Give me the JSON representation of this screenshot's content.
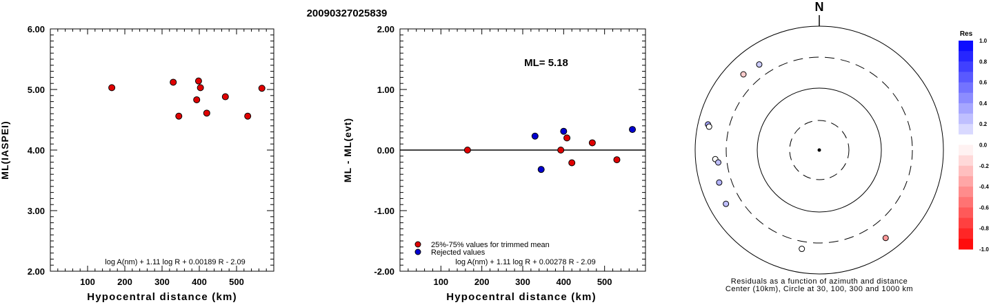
{
  "title": "20090327025839",
  "chart_data": [
    {
      "type": "scatter",
      "xlabel": "Hypocentral distance (km)",
      "ylabel": "ML(IASPEI)",
      "xlim": [
        0,
        600
      ],
      "ylim": [
        2.0,
        6.0
      ],
      "x_ticks": [
        100,
        200,
        300,
        400,
        500
      ],
      "y_ticks": [
        "2.00",
        "3.00",
        "4.00",
        "5.00",
        "6.00"
      ],
      "formula": "log A(nm) + 1.11 log R + 0.00189 R - 2.09",
      "points": [
        {
          "x": 165,
          "y": 5.03
        },
        {
          "x": 330,
          "y": 5.12
        },
        {
          "x": 345,
          "y": 4.56
        },
        {
          "x": 393,
          "y": 4.83
        },
        {
          "x": 398,
          "y": 5.14
        },
        {
          "x": 403,
          "y": 5.03
        },
        {
          "x": 420,
          "y": 4.61
        },
        {
          "x": 470,
          "y": 4.88
        },
        {
          "x": 530,
          "y": 4.56
        },
        {
          "x": 568,
          "y": 5.02
        }
      ],
      "point_color": "#e00000"
    },
    {
      "type": "scatter",
      "xlabel": "Hypocentral distance (km)",
      "ylabel": "ML - ML(evt)",
      "xlim": [
        0,
        600
      ],
      "ylim": [
        -2.0,
        2.0
      ],
      "x_ticks": [
        100,
        200,
        300,
        400,
        500
      ],
      "y_ticks": [
        "-2.00",
        "-1.00",
        "0.00",
        "1.00",
        "2.00"
      ],
      "zero_line": true,
      "annotation": "ML= 5.18",
      "formula": "log A(nm) + 1.11 log R + 0.00278 R - 2.09",
      "legend": [
        {
          "label": "25%-75% values for trimmed mean",
          "color": "#e00000"
        },
        {
          "label": "Rejected values",
          "color": "#0000d0"
        }
      ],
      "series": [
        {
          "name": "25%-75% values for trimmed mean",
          "color": "#e00000",
          "points": [
            {
              "x": 165,
              "y": 0.0
            },
            {
              "x": 393,
              "y": 0.0
            },
            {
              "x": 408,
              "y": 0.2
            },
            {
              "x": 420,
              "y": -0.21
            },
            {
              "x": 470,
              "y": 0.12
            },
            {
              "x": 530,
              "y": -0.16
            }
          ]
        },
        {
          "name": "Rejected values",
          "color": "#0000d0",
          "points": [
            {
              "x": 330,
              "y": 0.23
            },
            {
              "x": 345,
              "y": -0.32
            },
            {
              "x": 400,
              "y": 0.31
            },
            {
              "x": 568,
              "y": 0.34
            }
          ]
        }
      ]
    },
    {
      "type": "polar-scatter",
      "north_label": "N",
      "caption_line1": "Residuals as a function of azimuth and distance",
      "caption_line2": "Center (10km), Circle at 30, 100, 300 and 1000 km",
      "points": [
        {
          "azimuth": 325,
          "distance_km": 470,
          "residual": 0.2
        },
        {
          "azimuth": 315,
          "distance_km": 520,
          "residual": -0.2
        },
        {
          "azimuth": 283,
          "distance_km": 680,
          "residual": 0.35
        },
        {
          "azimuth": 282,
          "distance_km": 640,
          "residual": 0.0
        },
        {
          "azimuth": 265,
          "distance_km": 465,
          "residual": 0.0
        },
        {
          "azimuth": 263,
          "distance_km": 420,
          "residual": 0.25
        },
        {
          "azimuth": 252,
          "distance_km": 480,
          "residual": 0.3
        },
        {
          "azimuth": 240,
          "distance_km": 530,
          "residual": 0.25
        },
        {
          "azimuth": 190,
          "distance_km": 400,
          "residual": 0.0
        },
        {
          "azimuth": 143,
          "distance_km": 585,
          "residual": -0.4
        }
      ],
      "colorbar": {
        "title": "Res",
        "ticks": [
          "1.0",
          "0.8",
          "0.6",
          "0.4",
          "0.2",
          "0.0",
          "-0.2",
          "-0.4",
          "-0.6",
          "-0.8",
          "-1.0"
        ]
      }
    }
  ]
}
